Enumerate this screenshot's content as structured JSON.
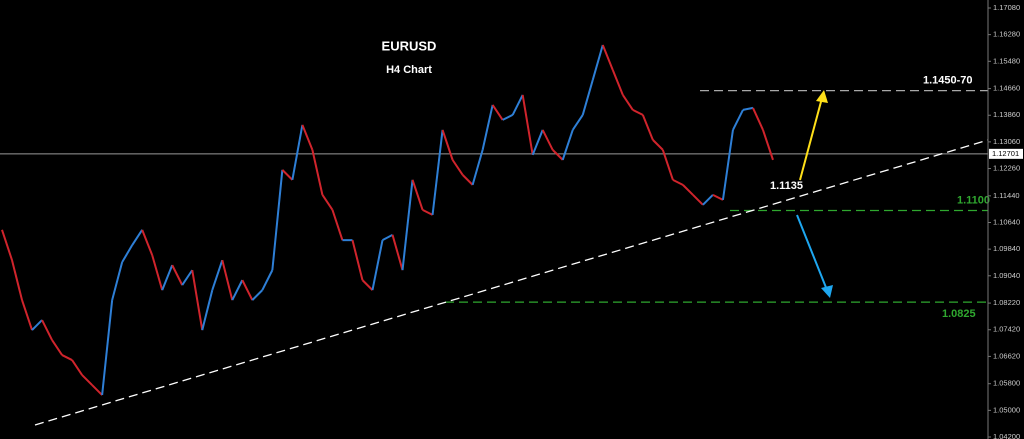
{
  "chart_data": {
    "type": "line",
    "title": "EURUSD",
    "subtitle": "H4 Chart",
    "series": [
      {
        "name": "EURUSD",
        "up_color": "#2e7fd6",
        "down_color": "#d0242c",
        "values": [
          1.1042,
          1.0951,
          1.0831,
          1.0741,
          1.0771,
          1.0711,
          1.0666,
          1.0651,
          1.0606,
          1.0576,
          1.0546,
          1.0831,
          1.0945,
          1.0996,
          1.1042,
          1.0966,
          1.0861,
          1.0936,
          1.0876,
          1.0921,
          1.0741,
          1.0861,
          1.0951,
          1.0831,
          1.0891,
          1.0831,
          1.0861,
          1.0921,
          1.1222,
          1.1192,
          1.1357,
          1.1282,
          1.1147,
          1.1102,
          1.1011,
          1.1011,
          1.0891,
          1.0861,
          1.1011,
          1.1027,
          1.0921,
          1.1192,
          1.1102,
          1.1087,
          1.1342,
          1.1252,
          1.1207,
          1.1177,
          1.1282,
          1.1417,
          1.1372,
          1.1387,
          1.1447,
          1.1267,
          1.1342,
          1.1282,
          1.1252,
          1.1342,
          1.1387,
          1.1492,
          1.1597,
          1.1522,
          1.1447,
          1.1402,
          1.1387,
          1.1312,
          1.1282,
          1.1192,
          1.1177,
          1.1147,
          1.1117,
          1.1147,
          1.1132,
          1.1342,
          1.1402,
          1.1408,
          1.1342,
          1.1252
        ]
      }
    ],
    "ylim": [
      1.0414,
      1.1732
    ],
    "yticks": [
      {
        "value": 1.1708,
        "label": "1.17080"
      },
      {
        "value": 1.1628,
        "label": "1.16280"
      },
      {
        "value": 1.1548,
        "label": "1.15480"
      },
      {
        "value": 1.1466,
        "label": "1.14660"
      },
      {
        "value": 1.1386,
        "label": "1.13860"
      },
      {
        "value": 1.1306,
        "label": "1.13060"
      },
      {
        "value": 1.1226,
        "label": "1.12260"
      },
      {
        "value": 1.1144,
        "label": "1.11440"
      },
      {
        "value": 1.1064,
        "label": "1.10640"
      },
      {
        "value": 1.0984,
        "label": "1.09840"
      },
      {
        "value": 1.0904,
        "label": "1.09040"
      },
      {
        "value": 1.0822,
        "label": "1.08220"
      },
      {
        "value": 1.0742,
        "label": "1.07420"
      },
      {
        "value": 1.0662,
        "label": "1.06620"
      },
      {
        "value": 1.058,
        "label": "1.05800"
      },
      {
        "value": 1.05,
        "label": "1.05000"
      },
      {
        "value": 1.042,
        "label": "1.04200"
      }
    ],
    "current_price": 1.12701,
    "levels": [
      {
        "value": 1.146,
        "label": "1.1450-70",
        "color": "#a8a8a8"
      },
      {
        "value": 1.11,
        "label": "1.1100",
        "color": "#2fa82f"
      },
      {
        "value": 1.0825,
        "label": "1.0825",
        "color": "#2fa82f"
      }
    ],
    "annotation": "1.1135"
  }
}
